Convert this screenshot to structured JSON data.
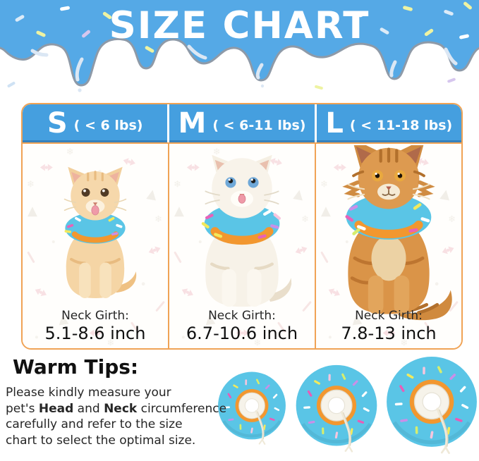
{
  "theme": {
    "banner_blue": "#55a9e6",
    "header_blue": "#459fdf",
    "border_orange": "#f0a355",
    "donut_blue": "#5ac5e6",
    "donut_orange": "#f2972f"
  },
  "banner": {
    "title": "SIZE CHART"
  },
  "chart_data": {
    "type": "table",
    "title": "SIZE CHART",
    "columns": [
      "S ( < 6 lbs)",
      "M ( < 6-11 lbs)",
      "L ( < 11-18 lbs)"
    ],
    "rows": [
      {
        "label": "Neck Girth:",
        "values": [
          "5.1-8.6 inch",
          "6.7-10.6 inch",
          "7.8-13 inch"
        ]
      }
    ]
  },
  "size_chart": {
    "columns": [
      {
        "size_letter": "S",
        "weight_range": "( < 6 lbs)",
        "neck_girth_label": "Neck Girth:",
        "neck_girth_value": "5.1-8.6 inch",
        "cat": "small-cream-kitten-wearing-donut-collar"
      },
      {
        "size_letter": "M",
        "weight_range": "( < 6-11 lbs)",
        "neck_girth_label": "Neck Girth:",
        "neck_girth_value": "6.7-10.6 inch",
        "cat": "white-cat-wearing-donut-collar"
      },
      {
        "size_letter": "L",
        "weight_range": "( < 11-18 lbs)",
        "neck_girth_label": "Neck Girth:",
        "neck_girth_value": "7.8-13 inch",
        "cat": "maine-coon-cat-wearing-donut-collar"
      }
    ]
  },
  "warm_tips": {
    "heading": "Warm Tips:",
    "segments": [
      {
        "text": "Please kindly measure your\npet's "
      },
      {
        "text": "Head",
        "bold": true
      },
      {
        "text": " and "
      },
      {
        "text": "Neck",
        "bold": true
      },
      {
        "text": " circumference\ncarefully and refer to the size\nchart to select the optimal size."
      }
    ]
  },
  "donut_row": [
    {
      "name": "donut-collar-small"
    },
    {
      "name": "donut-collar-medium"
    },
    {
      "name": "donut-collar-large"
    }
  ]
}
